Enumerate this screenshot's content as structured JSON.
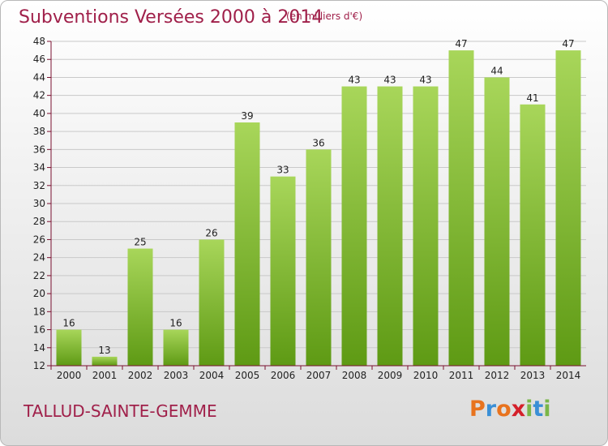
{
  "header": {
    "title": "Subventions Versées 2000 à 2014",
    "unit_note": "(en milliers d'€)"
  },
  "footer": {
    "commune": "TALLUD-SAINTE-GEMME",
    "logo_text": "Proxiti",
    "logo_colors": [
      "#e8731e",
      "#3a8fd6",
      "#e8731e",
      "#d4202a",
      "#7ab648",
      "#3a8fd6",
      "#7ab648"
    ]
  },
  "colors": {
    "title": "#a0204a",
    "bar_light": "#a8d65a",
    "bar_dark": "#5e9a14",
    "axis": "#7a1030"
  },
  "chart_data": {
    "type": "bar",
    "title": "Subventions Versées 2000 à 2014",
    "subtitle": "(en milliers d'€)",
    "xlabel": "",
    "ylabel": "",
    "categories": [
      "2000",
      "2001",
      "2002",
      "2003",
      "2004",
      "2005",
      "2006",
      "2007",
      "2008",
      "2009",
      "2010",
      "2011",
      "2012",
      "2013",
      "2014"
    ],
    "values": [
      16,
      13,
      25,
      16,
      26,
      39,
      33,
      36,
      43,
      43,
      43,
      47,
      44,
      41,
      47
    ],
    "ylim": [
      12,
      48
    ],
    "yticks": [
      12,
      14,
      16,
      18,
      20,
      22,
      24,
      26,
      28,
      30,
      32,
      34,
      36,
      38,
      40,
      42,
      44,
      46,
      48
    ],
    "grid": true,
    "legend": "none"
  }
}
